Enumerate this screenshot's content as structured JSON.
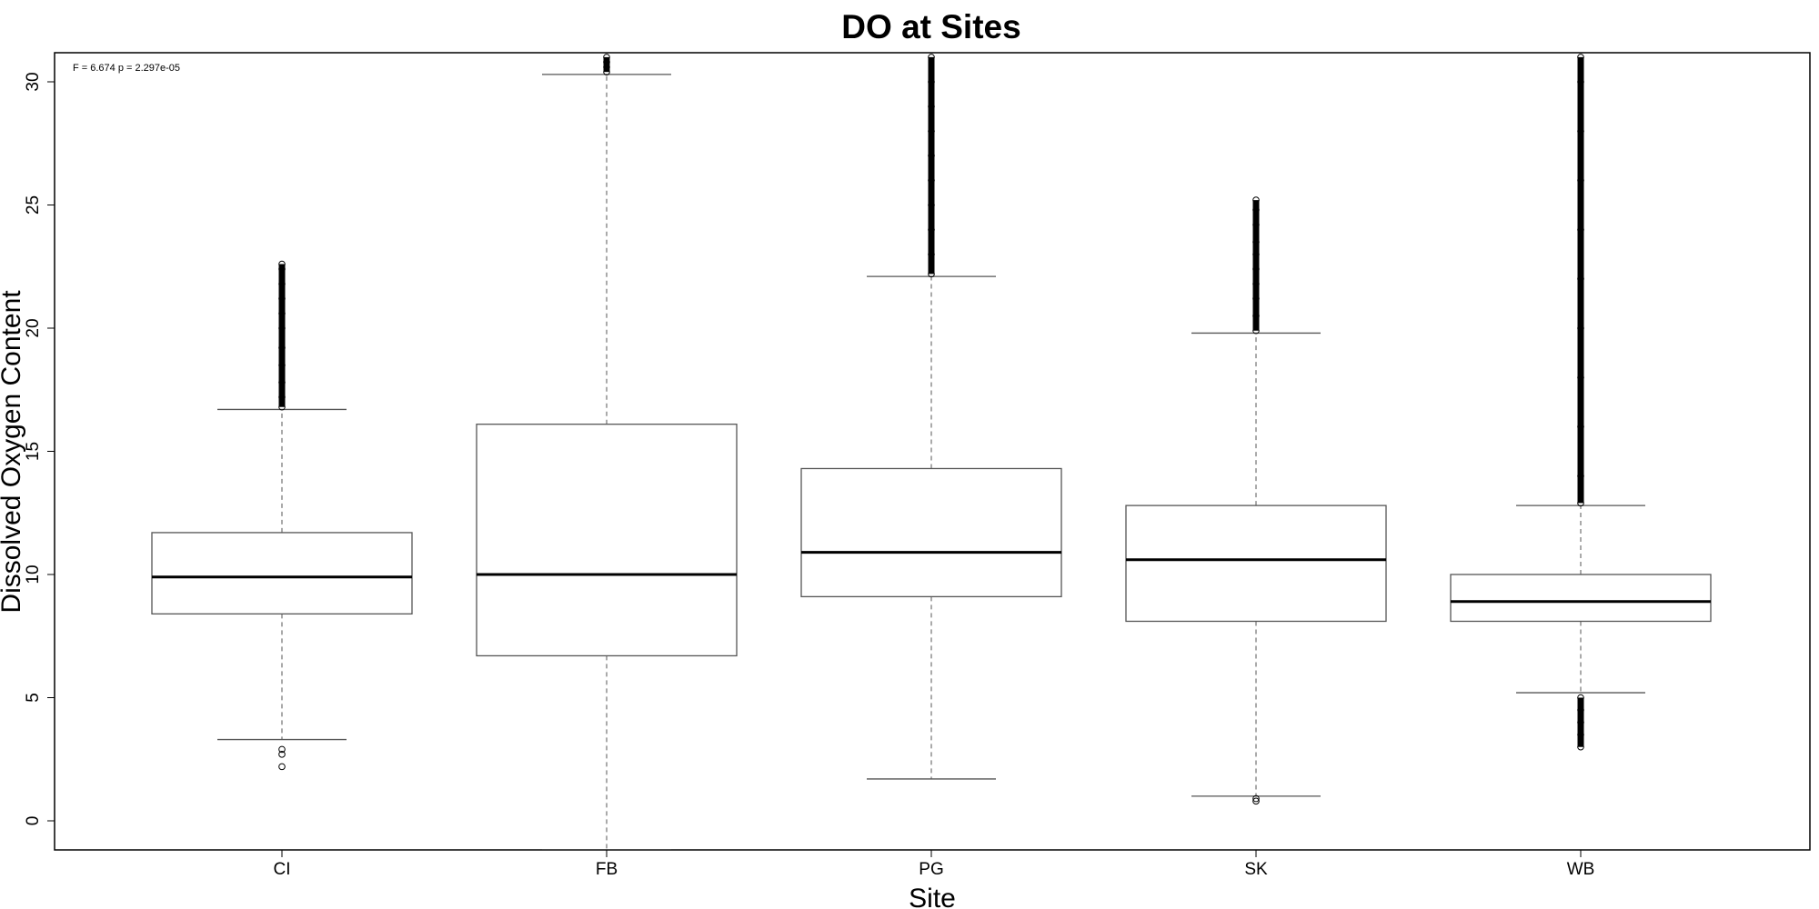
{
  "chart_data": {
    "type": "boxplot",
    "title": "DO at Sites",
    "xlabel": "Site",
    "ylabel": "Dissolved Oxygen Content",
    "annotation": "F = 6.674 p = 2.297e-05",
    "ylim": [
      -1.2,
      31.2
    ],
    "yticks": [
      0,
      5,
      10,
      15,
      20,
      25,
      30
    ],
    "grid": false,
    "legend": "none",
    "box_color": "#555555",
    "median_color": "#000000",
    "categories": [
      "CI",
      "FB",
      "PG",
      "SK",
      "WB"
    ],
    "boxes": [
      {
        "site": "CI",
        "whisker_low": 3.3,
        "q1": 8.4,
        "median": 9.9,
        "q3": 11.7,
        "whisker_high": 16.7,
        "outliers_low": [
          2.2,
          2.7,
          2.9
        ],
        "outliers_high_sample": [
          16.8,
          17.2,
          17.8,
          18.5,
          19.2,
          20.0,
          20.6,
          21.2,
          21.8,
          22.4,
          22.6
        ]
      },
      {
        "site": "FB",
        "whisker_low": -1.2,
        "q1": 6.7,
        "median": 10.0,
        "q3": 16.1,
        "whisker_high": 30.3,
        "outliers_low": [],
        "outliers_high_sample": [
          30.4,
          30.6,
          30.8,
          31.0
        ]
      },
      {
        "site": "PG",
        "whisker_low": 1.7,
        "q1": 9.1,
        "median": 10.9,
        "q3": 14.3,
        "whisker_high": 22.1,
        "outliers_low": [],
        "outliers_high_sample": [
          22.2,
          23.0,
          24.0,
          25.0,
          26.0,
          27.0,
          28.0,
          29.0,
          30.0,
          31.0
        ]
      },
      {
        "site": "SK",
        "whisker_low": 1.0,
        "q1": 8.1,
        "median": 10.6,
        "q3": 12.8,
        "whisker_high": 19.8,
        "outliers_low": [
          0.8,
          0.9
        ],
        "outliers_high_sample": [
          19.9,
          20.5,
          21.2,
          21.8,
          22.4,
          23.0,
          23.5,
          24.2,
          24.8,
          25.2
        ]
      },
      {
        "site": "WB",
        "whisker_low": 5.2,
        "q1": 8.1,
        "median": 8.9,
        "q3": 10.0,
        "whisker_high": 12.8,
        "outliers_low": [
          3.0,
          3.5,
          4.0,
          4.5,
          5.0
        ],
        "outliers_high_sample": [
          12.9,
          14.0,
          16.0,
          18.0,
          20.0,
          22.0,
          24.0,
          26.0,
          28.0,
          30.0,
          31.0
        ]
      }
    ]
  }
}
